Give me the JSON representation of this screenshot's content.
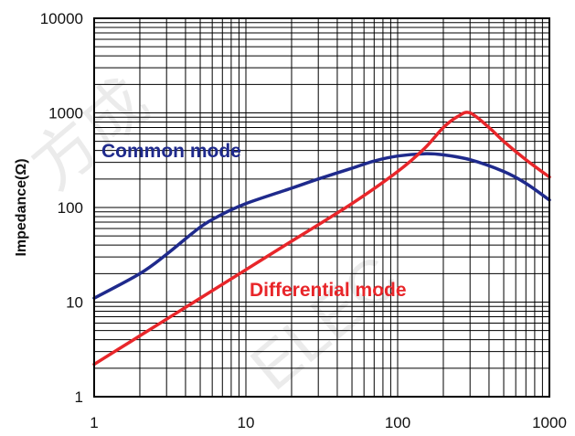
{
  "chart_data": {
    "type": "line",
    "xscale": "log",
    "yscale": "log",
    "xlim": [
      1,
      1000
    ],
    "ylim": [
      1,
      10000
    ],
    "ylabel": "Impedance(Ω)",
    "xlabel": "",
    "grid": true,
    "x_tick_labels": [
      "1",
      "10",
      "100",
      "1000"
    ],
    "y_tick_labels": [
      "1",
      "10",
      "100",
      "1000",
      "10000"
    ],
    "series": [
      {
        "name": "Common mode",
        "color": "#1f2a8c",
        "x": [
          1,
          2,
          3,
          5,
          7,
          10,
          20,
          30,
          50,
          70,
          100,
          150,
          200,
          300,
          500,
          700,
          1000
        ],
        "y": [
          11,
          20,
          32,
          62,
          85,
          110,
          160,
          200,
          260,
          310,
          350,
          370,
          360,
          320,
          240,
          180,
          120
        ]
      },
      {
        "name": "Differential mode",
        "color": "#e8262a",
        "x": [
          1,
          2,
          5,
          10,
          20,
          50,
          100,
          150,
          200,
          250,
          300,
          400,
          500,
          700,
          1000
        ],
        "y": [
          2.2,
          4.4,
          11,
          22,
          44,
          110,
          240,
          420,
          700,
          920,
          1000,
          700,
          500,
          320,
          210
        ]
      }
    ],
    "annotations": [
      {
        "text": "Common mode",
        "color": "#1f2a8c"
      },
      {
        "text": "Differential mode",
        "color": "#e8262a"
      }
    ]
  }
}
